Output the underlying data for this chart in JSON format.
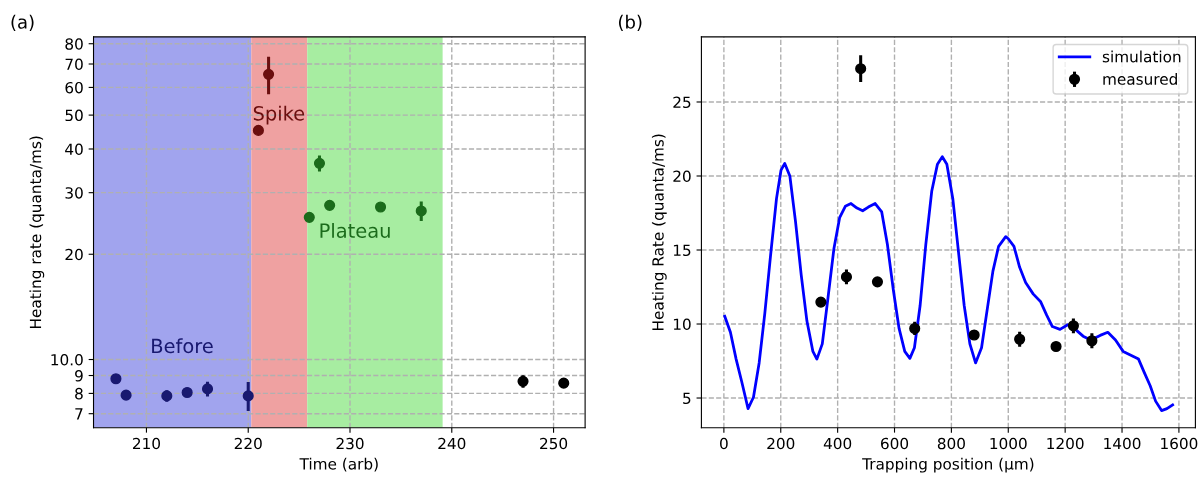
{
  "chart_data": [
    {
      "type": "scatter",
      "title": "(a)",
      "xlabel": "Time (arb)",
      "ylabel": "Heating rate (quanta/ms)",
      "log": "y",
      "grid": true,
      "legend": false,
      "marker": "circle",
      "xlim": [
        204.8,
        253.1
      ],
      "xticks": [
        210,
        220,
        230,
        240,
        250
      ],
      "ylim": [
        6.38,
        83.7
      ],
      "yticks": [
        7,
        8,
        9,
        {
          "value": 10,
          "label": "10.0"
        },
        20,
        30,
        40,
        50,
        60,
        70,
        80
      ],
      "bands": [
        {
          "axis": "x",
          "from": 204.8,
          "to": 220.3,
          "color": "#a1a4ee"
        },
        {
          "axis": "x",
          "from": 220.3,
          "to": 225.8,
          "color": "#efa1a1"
        },
        {
          "axis": "x",
          "from": 225.8,
          "to": 239.1,
          "color": "#a7eda1"
        }
      ],
      "series": [
        {
          "name": "Before",
          "color": "#191970",
          "x": [
            207,
            208,
            212,
            214,
            216,
            220
          ],
          "values": [
            8.81,
            7.91,
            7.87,
            8.05,
            8.24,
            7.87
          ],
          "errors": [
            null,
            null,
            0.3,
            0.2,
            0.4,
            0.75
          ]
        },
        {
          "name": "Spike",
          "color": "#6b0f0f",
          "x": [
            221,
            222
          ],
          "values": [
            45.2,
            65.4
          ],
          "errors": [
            null,
            8
          ]
        },
        {
          "name": "Plateau",
          "color": "#1b6b1b",
          "x": [
            226,
            227,
            228,
            233,
            237
          ],
          "values": [
            25.5,
            36.4,
            27.6,
            27.3,
            26.6
          ],
          "errors": [
            null,
            1.9,
            0.8,
            0.6,
            1.7
          ]
        },
        {
          "color": "#000000",
          "x": [
            247,
            251
          ],
          "values": [
            8.66,
            8.56
          ],
          "errors": [
            0.35,
            0.25
          ]
        }
      ]
    },
    {
      "type": "line",
      "title": "(b)",
      "xlabel": "Trapping position (μm)",
      "ylabel": "Heating Rate (quanta/ms)",
      "grid": true,
      "legend": "top right",
      "xlim": [
        -79,
        1658
      ],
      "xticks": [
        0,
        200,
        400,
        600,
        800,
        1000,
        1200,
        1400,
        1600
      ],
      "ylim": [
        2.99,
        29.4
      ],
      "yticks": [
        5,
        10,
        15,
        20,
        25
      ],
      "series": [
        {
          "name": "simulation",
          "color": "#0000ff",
          "line_style": "solid",
          "marker": "none",
          "x": [
            3,
            23,
            43,
            63,
            85,
            104,
            124,
            144,
            164,
            185,
            201,
            214,
            232,
            252,
            272,
            292,
            313,
            327,
            346,
            366,
            387,
            407,
            427,
            447,
            468,
            488,
            508,
            532,
            555,
            575,
            596,
            616,
            636,
            654,
            670,
            690,
            710,
            731,
            751,
            768,
            784,
            805,
            825,
            845,
            865,
            885,
            906,
            926,
            946,
            966,
            991,
            1000,
            1020,
            1040,
            1061,
            1088,
            1114,
            1135,
            1155,
            1182,
            1209,
            1236,
            1263,
            1290,
            1323,
            1350,
            1377,
            1404,
            1431,
            1458,
            1478,
            1499,
            1518,
            1539,
            1558,
            1578
          ],
          "values": [
            10.52,
            9.44,
            7.63,
            6.08,
            4.28,
            5.05,
            7.37,
            10.73,
            14.6,
            18.47,
            20.4,
            20.85,
            20.0,
            16.9,
            13.3,
            10.2,
            8.15,
            7.63,
            8.66,
            11.76,
            15.1,
            17.18,
            17.95,
            18.14,
            17.83,
            17.65,
            17.9,
            18.14,
            17.57,
            15.37,
            12.28,
            9.7,
            8.15,
            7.68,
            8.4,
            11.25,
            15.37,
            18.99,
            20.8,
            21.3,
            20.8,
            18.47,
            14.86,
            11.25,
            8.66,
            7.37,
            8.4,
            10.99,
            13.57,
            15.25,
            15.9,
            15.76,
            15.25,
            13.83,
            12.8,
            12.02,
            11.5,
            10.6,
            9.83,
            9.64,
            9.95,
            9.64,
            9.18,
            8.92,
            9.23,
            9.44,
            8.92,
            8.15,
            7.89,
            7.63,
            6.73,
            5.83,
            4.79,
            4.15,
            4.28,
            4.54
          ]
        },
        {
          "name": "measured",
          "type": "scatter",
          "color": "#000000",
          "marker": "circle",
          "x": [
            341,
            431,
            481,
            540,
            671,
            880,
            1040,
            1168,
            1229,
            1294
          ],
          "values": [
            11.48,
            13.18,
            27.25,
            12.85,
            9.7,
            9.26,
            8.97,
            8.48,
            9.88,
            8.87
          ],
          "errors": [
            null,
            0.5,
            0.9,
            0.3,
            0.45,
            null,
            0.5,
            null,
            0.5,
            0.5
          ]
        }
      ]
    }
  ]
}
